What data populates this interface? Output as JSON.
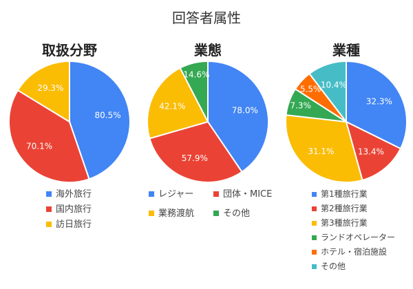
{
  "chart_data": {
    "title": "回答者属性",
    "charts": [
      {
        "type": "pie",
        "title": "取扱分野",
        "slices": [
          {
            "label": "海外旅行",
            "value": 80.5,
            "color": "#4285F4"
          },
          {
            "label": "国内旅行",
            "value": 70.1,
            "color": "#EA4335"
          },
          {
            "label": "訪日旅行",
            "value": 29.3,
            "color": "#FBBC04"
          }
        ],
        "legend_placement": "bottom"
      },
      {
        "type": "pie",
        "title": "業態",
        "slices": [
          {
            "label": "レジャー",
            "value": 78.0,
            "color": "#4285F4"
          },
          {
            "label": "団体・MICE",
            "value": 57.9,
            "color": "#EA4335"
          },
          {
            "label": "業務渡航",
            "value": 42.1,
            "color": "#FBBC04"
          },
          {
            "label": "その他",
            "value": 14.6,
            "color": "#34A853"
          }
        ],
        "legend_placement": "bottom"
      },
      {
        "type": "pie",
        "title": "業種",
        "slices": [
          {
            "label": "第1種旅行業",
            "value": 32.3,
            "color": "#4285F4"
          },
          {
            "label": "第2種旅行業",
            "value": 13.4,
            "color": "#EA4335"
          },
          {
            "label": "第3種旅行業",
            "value": 31.1,
            "color": "#FBBC04"
          },
          {
            "label": "ランドオペレーター",
            "value": 7.3,
            "color": "#34A853"
          },
          {
            "label": "ホテル・宿泊施設",
            "value": 5.5,
            "color": "#FF6D01"
          },
          {
            "label": "その他",
            "value": 10.4,
            "color": "#46BDC6"
          }
        ],
        "legend_placement": "bottom"
      }
    ]
  }
}
